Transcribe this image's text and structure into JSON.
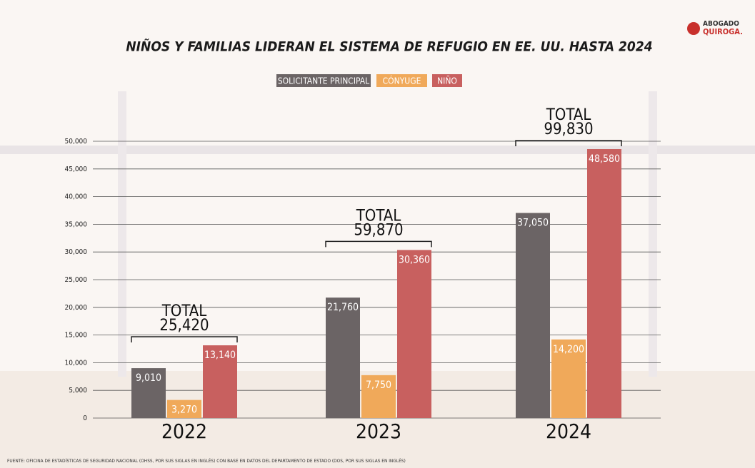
{
  "chart_data": {
    "type": "bar",
    "title": "NIÑOS Y FAMILIAS LIDERAN EL SISTEMA DE REFUGIO EN EE. UU. HASTA 2024",
    "logo": [
      "ABOGADO",
      "QUIROGA."
    ],
    "categories": [
      "2022",
      "2023",
      "2024"
    ],
    "series": [
      {
        "name": "SOLICITANTE PRINCIPAL",
        "color": "#6b6465",
        "values": [
          9010,
          21760,
          37050
        ],
        "value_labels": [
          "9,010",
          "21,760",
          "37,050"
        ]
      },
      {
        "name": "CÓNYUGE",
        "color": "#f0a95a",
        "values": [
          3270,
          7750,
          14200
        ],
        "value_labels": [
          "3,270",
          "7,750",
          "14,200"
        ]
      },
      {
        "name": "NIÑO",
        "color": "#c8605f",
        "values": [
          13140,
          30360,
          48580
        ],
        "value_labels": [
          "13,140",
          "30,360",
          "48,580"
        ]
      }
    ],
    "totals": {
      "title": "TOTAL",
      "values": [
        25420,
        59870,
        99830
      ],
      "value_labels": [
        "25,420",
        "59,870",
        "99,830"
      ]
    },
    "ylim": [
      0,
      50000
    ],
    "yticks": [
      0,
      {
        "value": 5000,
        "label": "5,000"
      },
      {
        "value": 10000,
        "label": "10,000"
      },
      {
        "value": 15000,
        "label": "15,000"
      },
      {
        "value": 20000,
        "label": "20,000"
      },
      {
        "value": 25000,
        "label": "25,000"
      },
      {
        "value": 30000,
        "label": "30,000"
      },
      {
        "value": 35000,
        "label": "35,000"
      },
      {
        "value": 40000,
        "label": "40,000"
      },
      {
        "value": 45000,
        "label": "45,000"
      },
      {
        "value": 50000,
        "label": "50,000"
      }
    ],
    "grid": true,
    "source": "FUENTE: OFICINA DE ESTADÍSTICAS DE SEGURIDAD NACIONAL (OHSS, POR SUS SIGLAS EN INGLÉS) CON BASE EN DATOS DEL DEPARTAMENTO DE ESTADO (DOS, POR SUS SIGLAS EN INGLÉS)"
  }
}
